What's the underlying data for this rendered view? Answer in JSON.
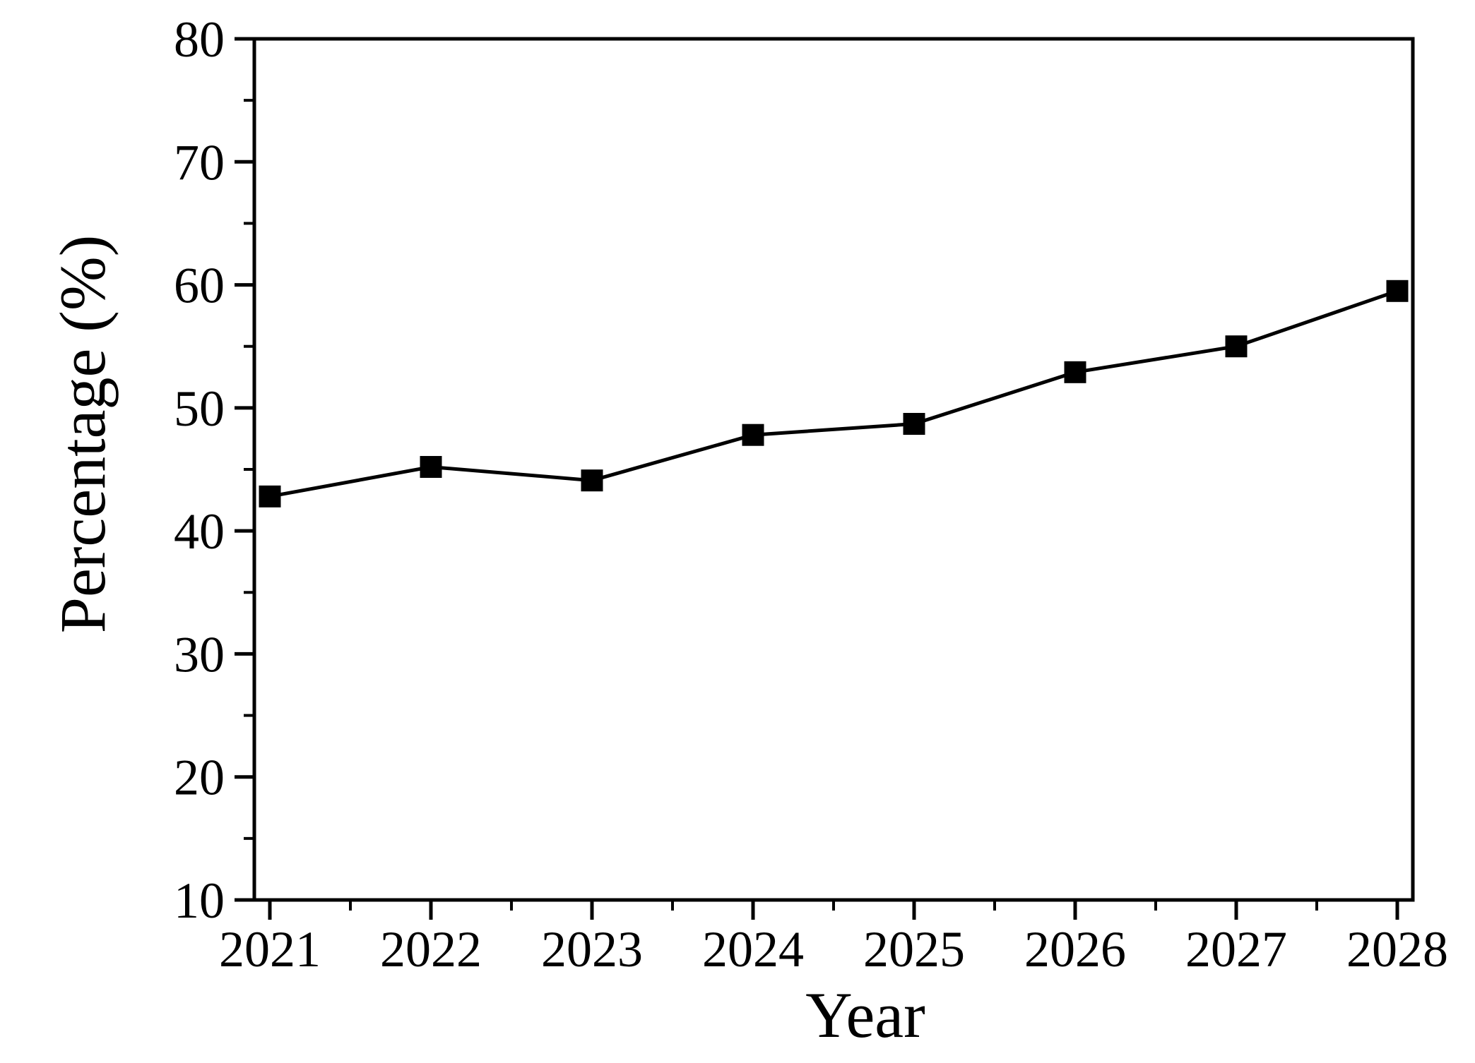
{
  "figure": {
    "background_color": "#ffffff",
    "foreground_color": "#000000"
  },
  "chart_data": {
    "type": "line",
    "title": "",
    "xlabel": "Year",
    "ylabel": "Percentage (%)",
    "x": [
      2021,
      2022,
      2023,
      2024,
      2025,
      2026,
      2027,
      2028
    ],
    "values": [
      42.8,
      45.2,
      44.1,
      47.8,
      48.7,
      52.9,
      55.0,
      59.5
    ],
    "x_tick_labels": [
      "2021",
      "2022",
      "2023",
      "2024",
      "2025",
      "2026",
      "2027",
      "2028"
    ],
    "y_tick_labels": [
      "10",
      "20",
      "30",
      "40",
      "50",
      "60",
      "70",
      "80"
    ],
    "ylim": [
      10,
      80
    ],
    "y_major_step": 10,
    "y_minor_step": 5,
    "x_minor_step": 0.5,
    "marker": "square",
    "line_color": "#000000",
    "marker_color": "#000000",
    "axis_color": "#000000",
    "grid": false,
    "legend": "none"
  }
}
